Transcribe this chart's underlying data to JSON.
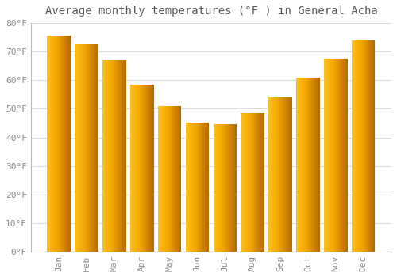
{
  "title": "Average monthly temperatures (°F ) in General Acha",
  "months": [
    "Jan",
    "Feb",
    "Mar",
    "Apr",
    "May",
    "Jun",
    "Jul",
    "Aug",
    "Sep",
    "Oct",
    "Nov",
    "Dec"
  ],
  "values": [
    75.5,
    72.5,
    67.0,
    58.5,
    51.0,
    45.0,
    44.5,
    48.5,
    54.0,
    61.0,
    67.5,
    74.0
  ],
  "bar_color_left": "#FFD060",
  "bar_color_main": "#FFA800",
  "bar_color_right": "#E08000",
  "background_color": "#FFFFFF",
  "plot_bg_color": "#FFFFFF",
  "grid_color": "#DDDDDD",
  "ylim": [
    0,
    80
  ],
  "yticks": [
    0,
    10,
    20,
    30,
    40,
    50,
    60,
    70,
    80
  ],
  "ytick_labels": [
    "0°F",
    "10°F",
    "20°F",
    "30°F",
    "40°F",
    "50°F",
    "60°F",
    "70°F",
    "80°F"
  ],
  "title_fontsize": 10,
  "tick_fontsize": 8,
  "tick_color": "#888888",
  "title_color": "#555555",
  "title_font": "monospace",
  "bar_width": 0.85
}
